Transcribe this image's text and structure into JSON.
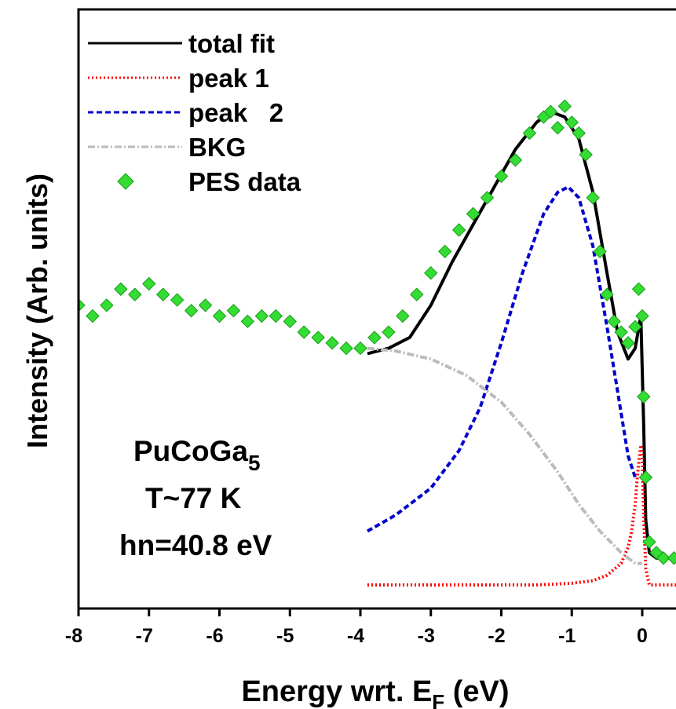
{
  "chart_data": {
    "type": "line",
    "xlabel": "Energy wrt. E",
    "xlabel_subscript": "F",
    "xlabel_unit": " (eV)",
    "ylabel": "Intensity (Arb. units)",
    "xlim": [
      -8,
      0.5
    ],
    "ylim": [
      0,
      1.0
    ],
    "x_ticks": [
      -8,
      -7,
      -6,
      -5,
      -4,
      -3,
      -2,
      -1,
      0
    ],
    "x_tick_labels": [
      "-8",
      "-7",
      "-6",
      "-5",
      "-4",
      "-3",
      "-2",
      "-1",
      "0"
    ],
    "y_ticks_shown": false,
    "grid": false,
    "legend_position": "top-left",
    "annotations": [
      {
        "text": "PuCoGa",
        "subscript": "5"
      },
      {
        "text": "T~77 K"
      },
      {
        "text": "hn=40.8 eV"
      }
    ],
    "series": [
      {
        "name": "total fit",
        "style": "solid",
        "color": "#000000",
        "x": [
          -3.9,
          -3.6,
          -3.3,
          -3.0,
          -2.7,
          -2.4,
          -2.1,
          -1.8,
          -1.5,
          -1.3,
          -1.1,
          -0.9,
          -0.7,
          -0.5,
          -0.35,
          -0.2,
          -0.1,
          -0.02,
          0.02,
          0.05,
          0.1,
          0.2,
          0.3,
          0.45
        ],
        "y": [
          0.43,
          0.44,
          0.46,
          0.52,
          0.6,
          0.67,
          0.74,
          0.81,
          0.86,
          0.88,
          0.87,
          0.83,
          0.73,
          0.58,
          0.47,
          0.42,
          0.44,
          0.5,
          0.3,
          0.12,
          0.06,
          0.05,
          0.05,
          0.05
        ]
      },
      {
        "name": "peak 1",
        "style": "dotted",
        "color": "#ff0000",
        "x": [
          -3.9,
          -3.0,
          -2.0,
          -1.5,
          -1.0,
          -0.7,
          -0.5,
          -0.3,
          -0.2,
          -0.15,
          -0.1,
          -0.07,
          -0.04,
          -0.02,
          0.0,
          0.02,
          0.05,
          0.1,
          0.2,
          0.5
        ],
        "y": [
          0.0,
          0.0,
          0.0,
          0.0,
          0.003,
          0.008,
          0.018,
          0.04,
          0.07,
          0.1,
          0.15,
          0.2,
          0.24,
          0.26,
          0.24,
          0.13,
          0.03,
          0.0,
          0.0,
          0.0
        ]
      },
      {
        "name": "peak   2",
        "style": "dashed",
        "color": "#0000cc",
        "x": [
          -3.9,
          -3.5,
          -3.0,
          -2.6,
          -2.3,
          -2.0,
          -1.7,
          -1.4,
          -1.2,
          -1.05,
          -0.9,
          -0.7,
          -0.5,
          -0.35,
          -0.2,
          -0.1
        ],
        "y": [
          0.1,
          0.13,
          0.18,
          0.25,
          0.33,
          0.45,
          0.58,
          0.69,
          0.73,
          0.74,
          0.72,
          0.63,
          0.48,
          0.36,
          0.24,
          0.2
        ]
      },
      {
        "name": "BKG",
        "style": "dash-dot",
        "color": "#bbbbbb",
        "x": [
          -3.9,
          -3.5,
          -3.0,
          -2.5,
          -2.0,
          -1.6,
          -1.2,
          -0.9,
          -0.6,
          -0.3,
          -0.1,
          0.0
        ],
        "y": [
          0.44,
          0.435,
          0.42,
          0.39,
          0.34,
          0.28,
          0.21,
          0.15,
          0.1,
          0.06,
          0.04,
          0.04
        ]
      },
      {
        "name": "PES data",
        "style": "marker-diamond",
        "color": "#33dd33",
        "x": [
          -8.0,
          -7.8,
          -7.6,
          -7.4,
          -7.2,
          -7.0,
          -6.8,
          -6.6,
          -6.4,
          -6.2,
          -6.0,
          -5.8,
          -5.6,
          -5.4,
          -5.2,
          -5.0,
          -4.8,
          -4.6,
          -4.4,
          -4.2,
          -4.0,
          -3.8,
          -3.6,
          -3.4,
          -3.2,
          -3.0,
          -2.8,
          -2.6,
          -2.4,
          -2.2,
          -2.0,
          -1.8,
          -1.6,
          -1.4,
          -1.3,
          -1.2,
          -1.1,
          -1.0,
          -0.9,
          -0.8,
          -0.7,
          -0.6,
          -0.5,
          -0.4,
          -0.3,
          -0.2,
          -0.1,
          -0.05,
          0.0,
          0.02,
          0.05,
          0.1,
          0.2,
          0.3,
          0.45
        ],
        "y": [
          0.52,
          0.5,
          0.52,
          0.55,
          0.54,
          0.56,
          0.54,
          0.53,
          0.51,
          0.52,
          0.5,
          0.51,
          0.49,
          0.5,
          0.5,
          0.49,
          0.47,
          0.46,
          0.45,
          0.44,
          0.44,
          0.46,
          0.47,
          0.5,
          0.54,
          0.58,
          0.62,
          0.66,
          0.69,
          0.72,
          0.76,
          0.79,
          0.84,
          0.87,
          0.88,
          0.85,
          0.89,
          0.86,
          0.84,
          0.8,
          0.72,
          0.62,
          0.54,
          0.49,
          0.47,
          0.45,
          0.48,
          0.55,
          0.5,
          0.35,
          0.2,
          0.08,
          0.06,
          0.05,
          0.05
        ]
      }
    ]
  }
}
